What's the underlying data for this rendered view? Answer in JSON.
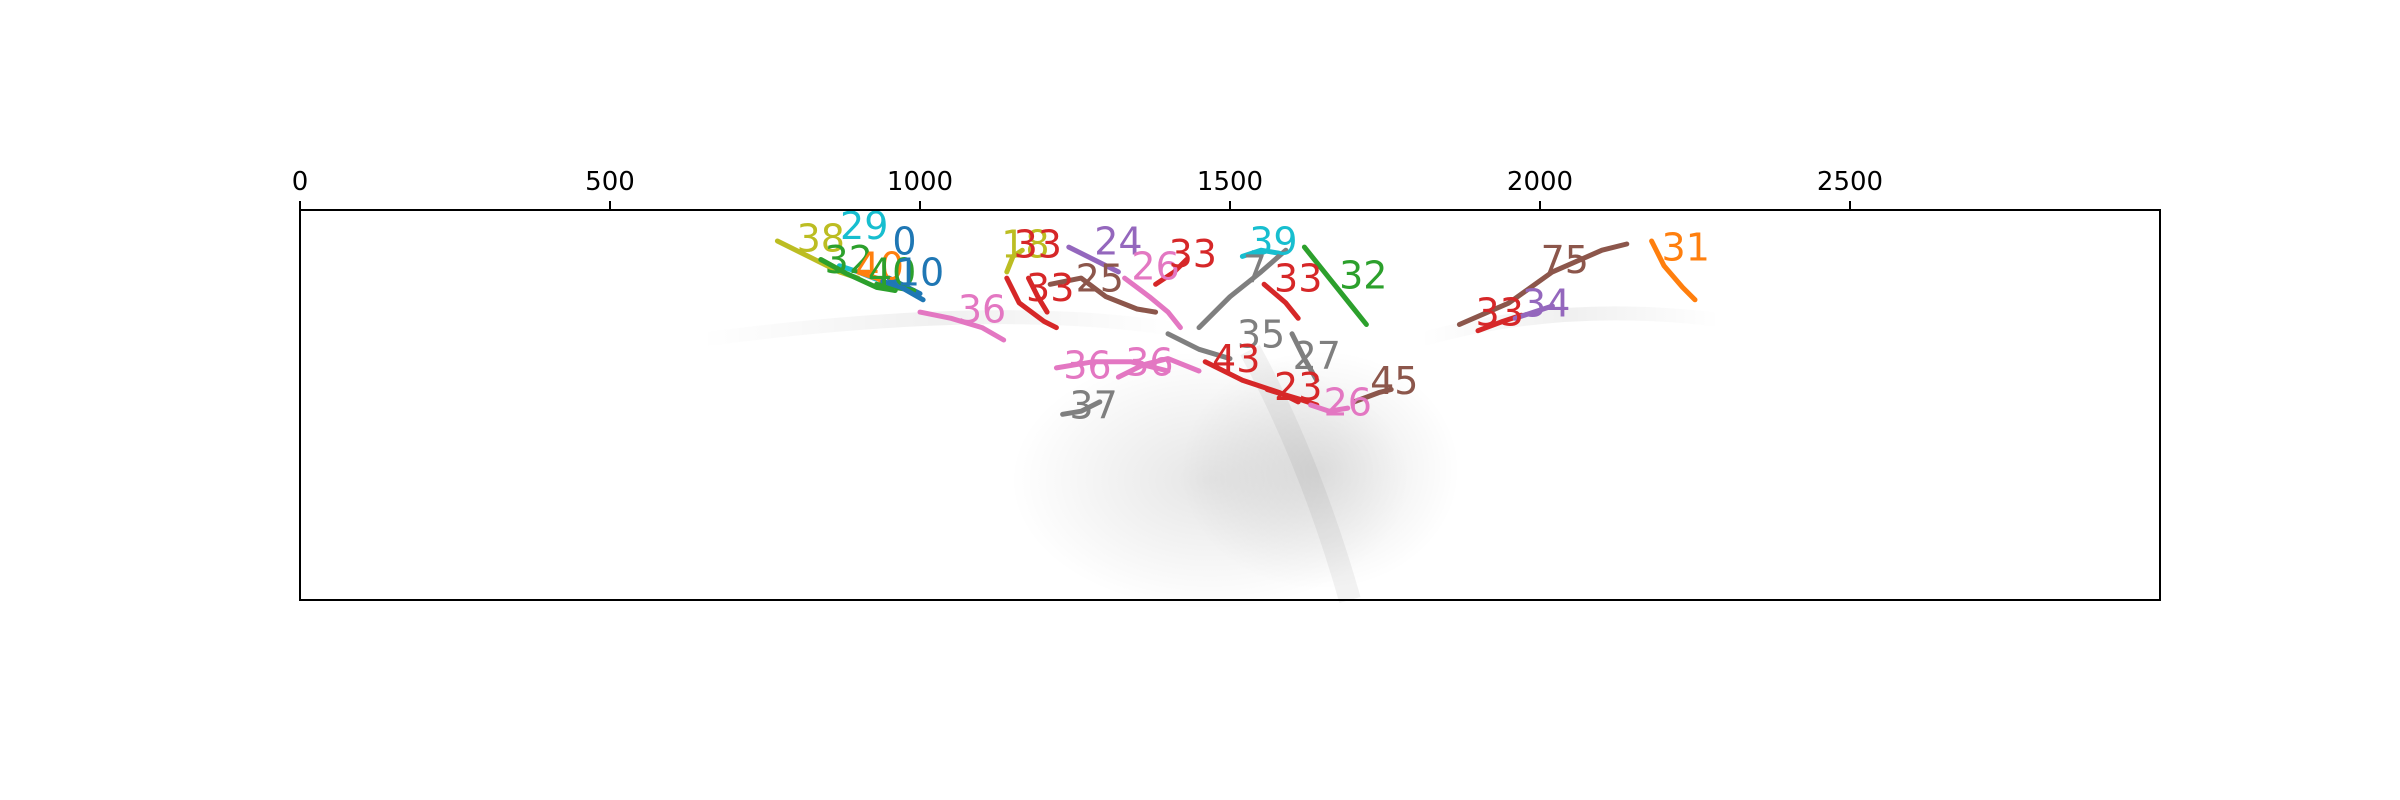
{
  "chart_data": {
    "type": "line",
    "title": "",
    "xlabel": "",
    "ylabel": "",
    "x_axis_position": "top",
    "xlim": [
      0,
      3000
    ],
    "ylim": [
      630,
      0
    ],
    "x_ticks": [
      0,
      500,
      1000,
      1500,
      2000,
      2500
    ],
    "x_tick_labels": [
      "0",
      "500",
      "1000",
      "1500",
      "2000",
      "2500"
    ],
    "y_ticks_visible": false,
    "grid": false,
    "background": "grayscale density image",
    "series": [
      {
        "name": "38",
        "color": "#bcbd22",
        "label_at": [
          840,
          50
        ],
        "points": [
          [
            770,
            50
          ],
          [
            820,
            75
          ],
          [
            870,
            100
          ],
          [
            900,
            110
          ]
        ]
      },
      {
        "name": "29",
        "color": "#17becf",
        "label_at": [
          910,
          30
        ],
        "points": [
          [
            870,
            90
          ],
          [
            900,
            100
          ],
          [
            930,
            112
          ]
        ]
      },
      {
        "name": "32",
        "color": "#2ca02c",
        "label_at": [
          885,
          85
        ],
        "points": [
          [
            840,
            80
          ],
          [
            880,
            102
          ],
          [
            930,
            125
          ],
          [
            960,
            130
          ]
        ]
      },
      {
        "name": "40",
        "color": "#ff7f0e",
        "label_at": [
          935,
          95
        ],
        "points": [
          [
            900,
            100
          ],
          [
            930,
            110
          ],
          [
            960,
            125
          ]
        ]
      },
      {
        "name": "0",
        "color": "#1f77b4",
        "label_at": [
          975,
          55
        ],
        "points": [
          [
            950,
            110
          ],
          [
            980,
            125
          ],
          [
            1000,
            135
          ]
        ]
      },
      {
        "name": "40",
        "color": "#2ca02c",
        "label_at": [
          955,
          105
        ],
        "points": [
          [
            930,
            120
          ],
          [
            960,
            125
          ],
          [
            990,
            130
          ]
        ]
      },
      {
        "name": "10",
        "color": "#1f77b4",
        "label_at": [
          1000,
          105
        ],
        "points": [
          [
            940,
            115
          ],
          [
            970,
            125
          ],
          [
            1005,
            145
          ]
        ]
      },
      {
        "name": "36",
        "color": "#e377c2",
        "label_at": [
          1100,
          165
        ],
        "points": [
          [
            1000,
            165
          ],
          [
            1050,
            175
          ],
          [
            1100,
            190
          ],
          [
            1135,
            210
          ]
        ]
      },
      {
        "name": "18",
        "color": "#bcbd22",
        "label_at": [
          1170,
          60
        ],
        "points": [
          [
            1140,
            100
          ],
          [
            1150,
            75
          ],
          [
            1165,
            65
          ]
        ]
      },
      {
        "name": "33",
        "color": "#d62728",
        "label_at": [
          1190,
          60
        ],
        "points": [
          [
            1140,
            110
          ],
          [
            1160,
            150
          ],
          [
            1200,
            180
          ],
          [
            1220,
            190
          ]
        ]
      },
      {
        "name": "33",
        "color": "#d62728",
        "label_at": [
          1210,
          130
        ],
        "points": [
          [
            1175,
            110
          ],
          [
            1190,
            140
          ],
          [
            1205,
            165
          ]
        ]
      },
      {
        "name": "24",
        "color": "#9467bd",
        "label_at": [
          1320,
          55
        ],
        "points": [
          [
            1240,
            60
          ],
          [
            1280,
            80
          ],
          [
            1320,
            100
          ]
        ]
      },
      {
        "name": "25",
        "color": "#8c564b",
        "label_at": [
          1290,
          115
        ],
        "points": [
          [
            1210,
            120
          ],
          [
            1260,
            110
          ],
          [
            1300,
            140
          ],
          [
            1350,
            160
          ],
          [
            1380,
            165
          ]
        ]
      },
      {
        "name": "26",
        "color": "#e377c2",
        "label_at": [
          1380,
          95
        ],
        "points": [
          [
            1330,
            110
          ],
          [
            1370,
            140
          ],
          [
            1400,
            165
          ],
          [
            1420,
            190
          ]
        ]
      },
      {
        "name": "33",
        "color": "#d62728",
        "label_at": [
          1440,
          75
        ],
        "points": [
          [
            1380,
            120
          ],
          [
            1410,
            100
          ],
          [
            1430,
            80
          ]
        ]
      },
      {
        "name": "39",
        "color": "#17becf",
        "label_at": [
          1570,
          55
        ],
        "points": [
          [
            1520,
            75
          ],
          [
            1550,
            65
          ],
          [
            1580,
            70
          ]
        ]
      },
      {
        "name": "33",
        "color": "#d62728",
        "label_at": [
          1610,
          115
        ],
        "points": [
          [
            1555,
            120
          ],
          [
            1590,
            150
          ],
          [
            1610,
            175
          ]
        ]
      },
      {
        "name": "32",
        "color": "#2ca02c",
        "label_at": [
          1715,
          110
        ],
        "points": [
          [
            1620,
            60
          ],
          [
            1660,
            110
          ],
          [
            1700,
            160
          ],
          [
            1720,
            185
          ]
        ]
      },
      {
        "name": "7",
        "color": "#7f7f7f",
        "label_at": [
          1540,
          100
        ],
        "points": [
          [
            1450,
            190
          ],
          [
            1500,
            140
          ],
          [
            1550,
            100
          ],
          [
            1590,
            65
          ]
        ]
      },
      {
        "name": "35",
        "color": "#7f7f7f",
        "label_at": [
          1550,
          205
        ],
        "points": [
          [
            1400,
            200
          ],
          [
            1450,
            225
          ],
          [
            1500,
            240
          ]
        ]
      },
      {
        "name": "27",
        "color": "#7f7f7f",
        "label_at": [
          1640,
          240
        ],
        "points": [
          [
            1600,
            200
          ],
          [
            1620,
            240
          ],
          [
            1640,
            275
          ]
        ]
      },
      {
        "name": "43",
        "color": "#d62728",
        "label_at": [
          1510,
          245
        ],
        "points": [
          [
            1460,
            245
          ],
          [
            1520,
            275
          ],
          [
            1580,
            295
          ],
          [
            1610,
            310
          ]
        ]
      },
      {
        "name": "23",
        "color": "#d62728",
        "label_at": [
          1610,
          290
        ],
        "points": [
          [
            1560,
            290
          ],
          [
            1610,
            305
          ],
          [
            1640,
            315
          ]
        ]
      },
      {
        "name": "26",
        "color": "#e377c2",
        "label_at": [
          1690,
          315
        ],
        "points": [
          [
            1630,
            315
          ],
          [
            1660,
            325
          ],
          [
            1690,
            320
          ]
        ]
      },
      {
        "name": "45",
        "color": "#8c564b",
        "label_at": [
          1765,
          280
        ],
        "points": [
          [
            1700,
            310
          ],
          [
            1740,
            295
          ],
          [
            1760,
            290
          ]
        ]
      },
      {
        "name": "36",
        "color": "#e377c2",
        "label_at": [
          1270,
          255
        ],
        "points": [
          [
            1220,
            255
          ],
          [
            1280,
            245
          ],
          [
            1340,
            245
          ],
          [
            1400,
            260
          ]
        ]
      },
      {
        "name": "36",
        "color": "#e377c2",
        "label_at": [
          1370,
          250
        ],
        "points": [
          [
            1320,
            270
          ],
          [
            1360,
            250
          ],
          [
            1400,
            240
          ],
          [
            1450,
            260
          ]
        ]
      },
      {
        "name": "37",
        "color": "#7f7f7f",
        "label_at": [
          1280,
          320
        ],
        "points": [
          [
            1230,
            330
          ],
          [
            1260,
            325
          ],
          [
            1290,
            310
          ]
        ]
      },
      {
        "name": "75",
        "color": "#8c564b",
        "label_at": [
          2040,
          85
        ],
        "points": [
          [
            1870,
            185
          ],
          [
            1950,
            150
          ],
          [
            2020,
            100
          ],
          [
            2100,
            65
          ],
          [
            2140,
            55
          ]
        ]
      },
      {
        "name": "33",
        "color": "#d62728",
        "label_at": [
          1935,
          170
        ],
        "points": [
          [
            1900,
            195
          ],
          [
            1940,
            180
          ],
          [
            1970,
            170
          ]
        ]
      },
      {
        "name": "34",
        "color": "#9467bd",
        "label_at": [
          2010,
          155
        ],
        "points": [
          [
            1960,
            175
          ],
          [
            1990,
            165
          ],
          [
            2020,
            155
          ]
        ]
      },
      {
        "name": "31",
        "color": "#ff7f0e",
        "label_at": [
          2235,
          65
        ],
        "points": [
          [
            2180,
            50
          ],
          [
            2200,
            90
          ],
          [
            2230,
            125
          ],
          [
            2250,
            145
          ]
        ]
      }
    ]
  }
}
